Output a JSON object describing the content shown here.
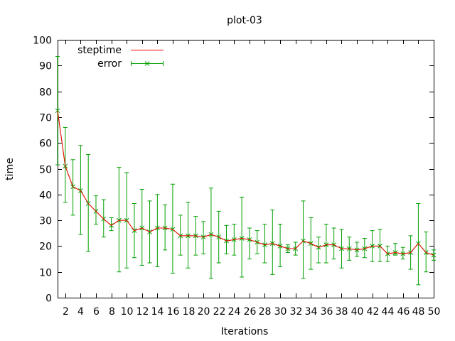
{
  "chart_data": {
    "type": "line",
    "title": "plot-03",
    "xlabel": "Iterations",
    "ylabel": "time",
    "xlim": [
      1,
      50
    ],
    "ylim": [
      0,
      100
    ],
    "x_ticks": [
      2,
      4,
      6,
      8,
      10,
      12,
      14,
      16,
      18,
      20,
      22,
      24,
      26,
      28,
      30,
      32,
      34,
      36,
      38,
      40,
      42,
      44,
      46,
      48,
      50
    ],
    "y_ticks": [
      0,
      10,
      20,
      30,
      40,
      50,
      60,
      70,
      80,
      90,
      100
    ],
    "grid": false,
    "legend_position": "top-left",
    "x": [
      1,
      2,
      3,
      4,
      5,
      6,
      7,
      8,
      9,
      10,
      11,
      12,
      13,
      14,
      15,
      16,
      17,
      18,
      19,
      20,
      21,
      22,
      23,
      24,
      25,
      26,
      27,
      28,
      29,
      30,
      31,
      32,
      33,
      34,
      35,
      36,
      37,
      38,
      39,
      40,
      41,
      42,
      43,
      44,
      45,
      46,
      47,
      48,
      49,
      50
    ],
    "series": [
      {
        "name": "steptime",
        "color": "#ff0000",
        "style": "line",
        "values": [
          72.5,
          51,
          43,
          41.5,
          36.5,
          33.5,
          30.5,
          28,
          30,
          30,
          26,
          27,
          25.5,
          27,
          27,
          26.5,
          24,
          24,
          24,
          23.5,
          24.5,
          23.5,
          22,
          22.5,
          23,
          22.5,
          21.5,
          20.5,
          21,
          20,
          19,
          19,
          22,
          21,
          19.5,
          20.5,
          20.5,
          19,
          19,
          18.5,
          19,
          20,
          20,
          17,
          17.5,
          17,
          17.5,
          21,
          17.5,
          16.5
        ]
      },
      {
        "name": "error",
        "color": "#00a000",
        "style": "line-errorbars",
        "values": [
          72.5,
          51,
          43,
          41.5,
          36.5,
          33.5,
          30.5,
          28,
          30,
          30,
          26,
          27,
          25.5,
          27,
          27,
          26.5,
          24,
          24,
          24,
          23.5,
          24.5,
          23.5,
          22,
          22.5,
          23,
          22.5,
          21.5,
          20.5,
          21,
          20,
          19,
          19,
          22,
          21,
          19.5,
          20.5,
          20.5,
          19,
          19,
          18.5,
          19,
          20,
          20,
          17,
          17.5,
          17,
          17.5,
          21,
          17.5,
          16.5
        ],
        "err_low": [
          51.5,
          37,
          32,
          24.5,
          18,
          28.5,
          23.5,
          26,
          10,
          11.5,
          15.5,
          12.5,
          13.5,
          12,
          18.5,
          9.5,
          16.5,
          11.5,
          16.5,
          17,
          7.5,
          13.5,
          17,
          16.5,
          8,
          15,
          17,
          13.5,
          9,
          12,
          17.5,
          16.5,
          7.5,
          11,
          13.5,
          13.5,
          15,
          11.5,
          14.5,
          16,
          15.5,
          14,
          14,
          14,
          16.5,
          15,
          11,
          5,
          10,
          14.5
        ],
        "err_high": [
          93.5,
          66,
          53.5,
          59,
          55.5,
          39.5,
          38,
          31,
          50.5,
          48.5,
          36.5,
          42,
          37.5,
          40,
          36,
          44,
          32,
          37,
          31.5,
          29.5,
          42.5,
          33.5,
          28,
          28.5,
          39,
          27,
          26,
          28.5,
          34,
          28.5,
          20.5,
          21.5,
          37.5,
          31,
          23.5,
          28.5,
          27,
          26.5,
          23.5,
          21.5,
          23,
          26,
          26.5,
          20,
          21,
          19.5,
          24,
          36.5,
          25.5,
          18.5
        ]
      }
    ]
  }
}
